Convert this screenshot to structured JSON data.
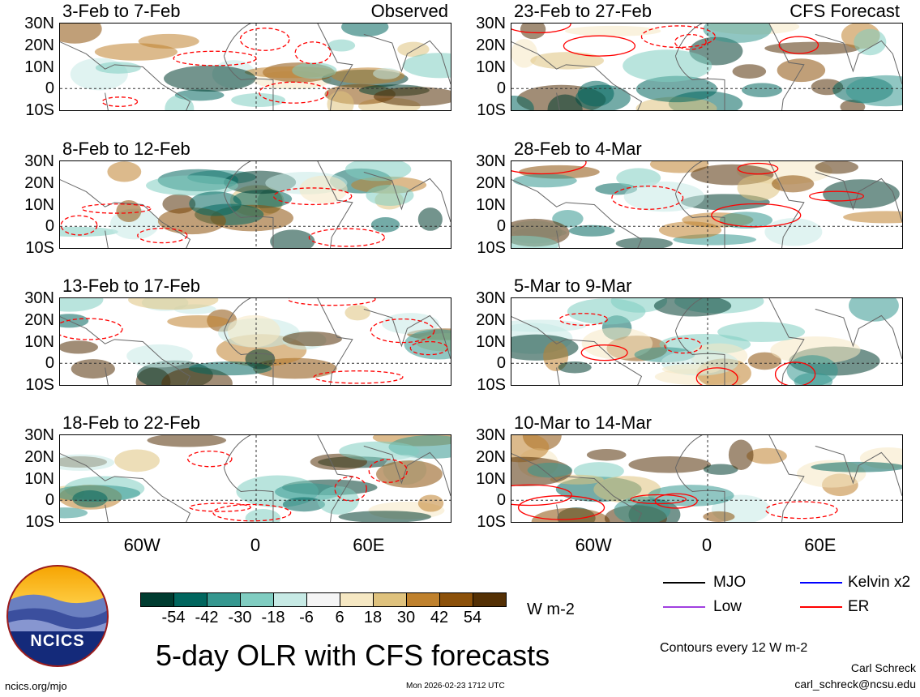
{
  "panels": [
    {
      "title": "3-Feb to 7-Feb",
      "tag": "Observed"
    },
    {
      "title": "8-Feb to 12-Feb"
    },
    {
      "title": "13-Feb to 17-Feb"
    },
    {
      "title": "18-Feb to 22-Feb"
    },
    {
      "title": "23-Feb to 27-Feb",
      "tag": "CFS Forecast"
    },
    {
      "title": "28-Feb to 4-Mar"
    },
    {
      "title": "5-Mar to 9-Mar"
    },
    {
      "title": "10-Mar to 14-Mar"
    }
  ],
  "lat_labels": [
    "30N",
    "20N",
    "10N",
    "0",
    "10S"
  ],
  "lon_labels": [
    "60W",
    "0",
    "60E"
  ],
  "colorbar": {
    "colors": [
      "#003c30",
      "#01665e",
      "#35978f",
      "#80cdc1",
      "#c7eae5",
      "#f5f5f5",
      "#f6e8c3",
      "#dfc27d",
      "#bf812d",
      "#8c510a",
      "#543005"
    ],
    "labels": [
      "-54",
      "-42",
      "-30",
      "-18",
      "-6",
      "6",
      "18",
      "30",
      "42",
      "54"
    ],
    "units": "W m-2"
  },
  "legend": {
    "items": [
      {
        "label": "MJO",
        "color": "#000000"
      },
      {
        "label": "Kelvin x2",
        "color": "#0000ff"
      },
      {
        "label": "Low",
        "color": "#a040e0"
      },
      {
        "label": "ER",
        "color": "#ff0000"
      }
    ],
    "contours": "Contours every 12 W m-2"
  },
  "title": "5-day OLR with CFS forecasts",
  "timestamp": "Mon 2026-02-23 1712 UTC",
  "url": "ncics.org/mjo",
  "author": "Carl Schreck",
  "email": "carl_schreck@ncsu.edu",
  "logo_text": "NCICS"
}
